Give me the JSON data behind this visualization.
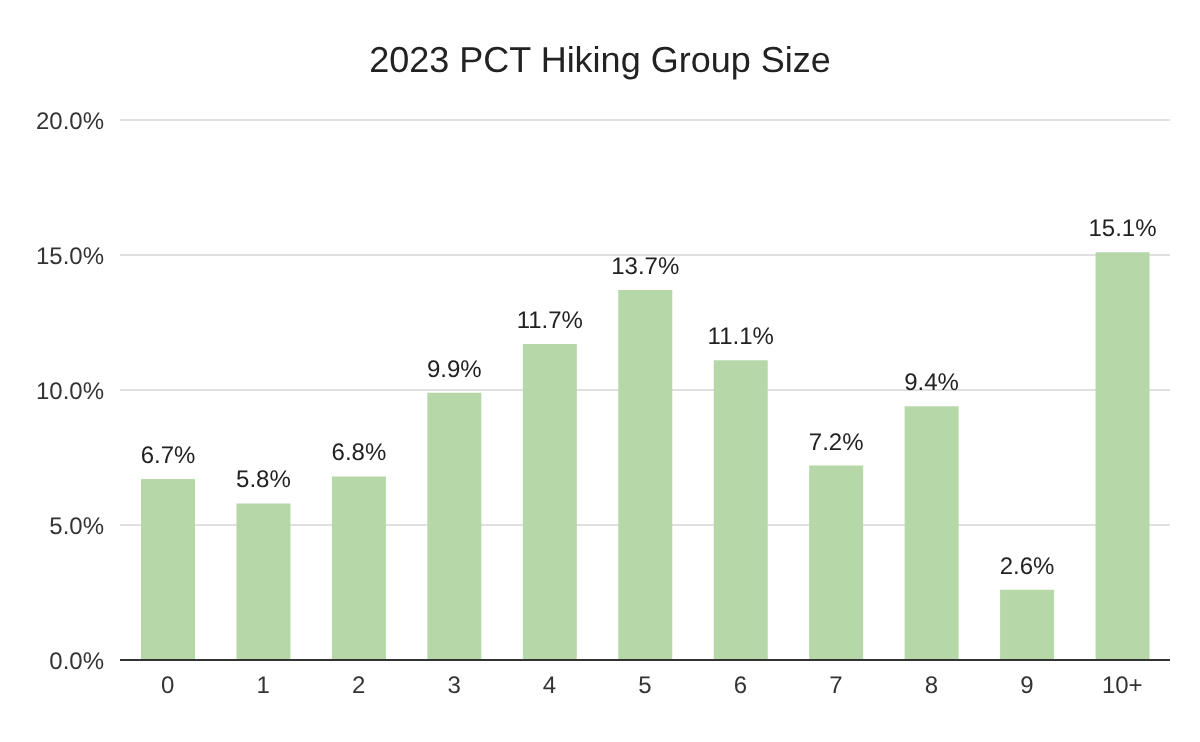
{
  "chart_data": {
    "type": "bar",
    "title": "2023 PCT Hiking Group Size",
    "categories": [
      "0",
      "1",
      "2",
      "3",
      "4",
      "5",
      "6",
      "7",
      "8",
      "9",
      "10+"
    ],
    "values": [
      6.7,
      5.8,
      6.8,
      9.9,
      11.7,
      13.7,
      11.1,
      7.2,
      9.4,
      2.6,
      15.1
    ],
    "value_labels": [
      "6.7%",
      "5.8%",
      "6.8%",
      "9.9%",
      "11.7%",
      "13.7%",
      "11.1%",
      "7.2%",
      "9.4%",
      "2.6%",
      "15.1%"
    ],
    "color": "#b6d7a8",
    "ylim": [
      0,
      20
    ],
    "yticks": [
      {
        "value": 0,
        "label": "0.0%"
      },
      {
        "value": 5,
        "label": "5.0%"
      },
      {
        "value": 10,
        "label": "10.0%"
      },
      {
        "value": 15,
        "label": "15.0%"
      },
      {
        "value": 20,
        "label": "20.0%"
      }
    ],
    "grid": "y"
  }
}
